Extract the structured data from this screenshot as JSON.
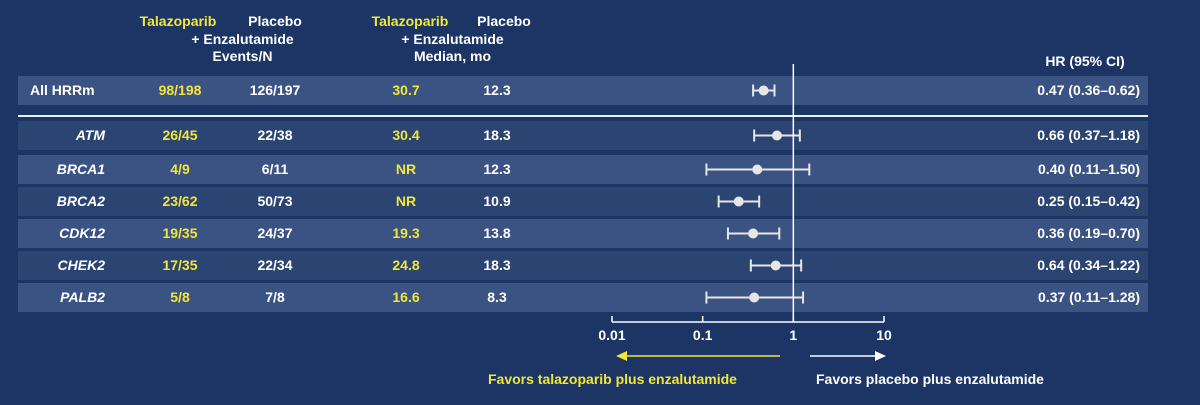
{
  "header": {
    "col1_top": "Talazoparib",
    "col2_top": "Placebo",
    "col12_sub": "+ Enzalutamide",
    "col12_metric": "Events/N",
    "col3_top": "Talazoparib",
    "col4_top": "Placebo",
    "col34_sub": "+ Enzalutamide",
    "col34_metric": "Median, mo",
    "hr_header": "HR (95% CI)"
  },
  "colors": {
    "background": "#1c3564",
    "highlight": "#f2e63b",
    "row_light": "#3a5383",
    "row_dark": "#2c4472",
    "marker": "#e6e6e6"
  },
  "chart_data": {
    "type": "forest",
    "x_scale": "log",
    "xlim": [
      0.01,
      10
    ],
    "reference_line": 1,
    "x_ticks": [
      "0.01",
      "0.1",
      "1",
      "10"
    ],
    "favors_left": "Favors talazoparib plus enzalutamide",
    "favors_right": "Favors placebo plus enzalutamide",
    "rows": [
      {
        "label": "All HRRm",
        "italic": false,
        "tal_events": "98/198",
        "pbo_events": "126/197",
        "tal_median": "30.7",
        "pbo_median": "12.3",
        "hr": 0.47,
        "lo": 0.36,
        "hi": 0.62,
        "hr_text": "0.47 (0.36–0.62)"
      },
      {
        "label": "ATM",
        "italic": true,
        "tal_events": "26/45",
        "pbo_events": "22/38",
        "tal_median": "30.4",
        "pbo_median": "18.3",
        "hr": 0.66,
        "lo": 0.37,
        "hi": 1.18,
        "hr_text": "0.66 (0.37–1.18)"
      },
      {
        "label": "BRCA1",
        "italic": true,
        "tal_events": "4/9",
        "pbo_events": "6/11",
        "tal_median": "NR",
        "pbo_median": "12.3",
        "hr": 0.4,
        "lo": 0.11,
        "hi": 1.5,
        "hr_text": "0.40 (0.11–1.50)"
      },
      {
        "label": "BRCA2",
        "italic": true,
        "tal_events": "23/62",
        "pbo_events": "50/73",
        "tal_median": "NR",
        "pbo_median": "10.9",
        "hr": 0.25,
        "lo": 0.15,
        "hi": 0.42,
        "hr_text": "0.25 (0.15–0.42)"
      },
      {
        "label": "CDK12",
        "italic": true,
        "tal_events": "19/35",
        "pbo_events": "24/37",
        "tal_median": "19.3",
        "pbo_median": "13.8",
        "hr": 0.36,
        "lo": 0.19,
        "hi": 0.7,
        "hr_text": "0.36 (0.19–0.70)"
      },
      {
        "label": "CHEK2",
        "italic": true,
        "tal_events": "17/35",
        "pbo_events": "22/34",
        "tal_median": "24.8",
        "pbo_median": "18.3",
        "hr": 0.64,
        "lo": 0.34,
        "hi": 1.22,
        "hr_text": "0.64 (0.34–1.22)"
      },
      {
        "label": "PALB2",
        "italic": true,
        "tal_events": "5/8",
        "pbo_events": "7/8",
        "tal_median": "16.6",
        "pbo_median": "8.3",
        "hr": 0.37,
        "lo": 0.11,
        "hi": 1.28,
        "hr_text": "0.37 (0.11–1.28)"
      }
    ]
  }
}
